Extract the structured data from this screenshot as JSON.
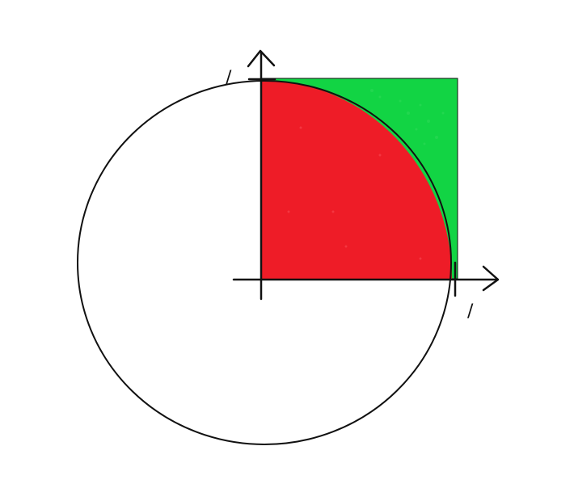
{
  "diagram": {
    "colors": {
      "square_fill": "#12d444",
      "quarter_disk_fill": "#ee1c27",
      "outline": "#111111",
      "background": "#ffffff"
    },
    "labels": {
      "y_unit_mark": "/",
      "x_unit_mark": "/"
    }
  }
}
